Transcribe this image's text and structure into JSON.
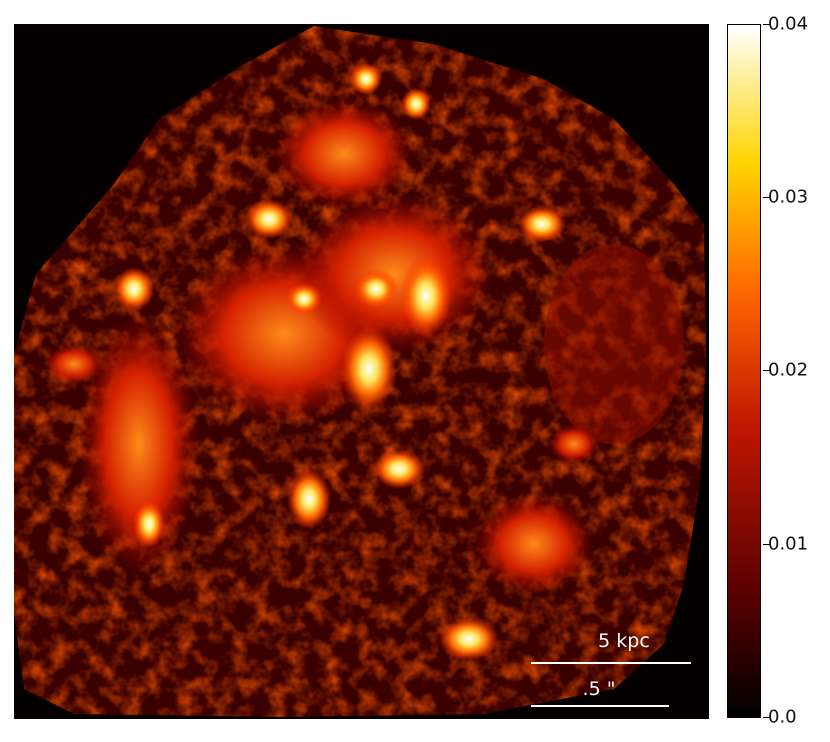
{
  "image": {
    "subject": "false-color intensity map",
    "colormap": "hot",
    "colors": {
      "background": "#050000",
      "dark_red": "#5a0000",
      "red": "#c01600",
      "orange": "#ff6a00",
      "yellow": "#ffd400",
      "white": "#ffffff"
    }
  },
  "colorbar": {
    "min": 0.0,
    "max": 0.04,
    "ticks": [
      {
        "value": 0.04,
        "label": "0.04"
      },
      {
        "value": 0.03,
        "label": "0.03"
      },
      {
        "value": 0.02,
        "label": "0.02"
      },
      {
        "value": 0.01,
        "label": "0.01"
      },
      {
        "value": 0.0,
        "label": "0.0"
      }
    ]
  },
  "scale_bars": {
    "physical": {
      "label": "5 kpc"
    },
    "angular": {
      "label": ".5 \""
    }
  }
}
